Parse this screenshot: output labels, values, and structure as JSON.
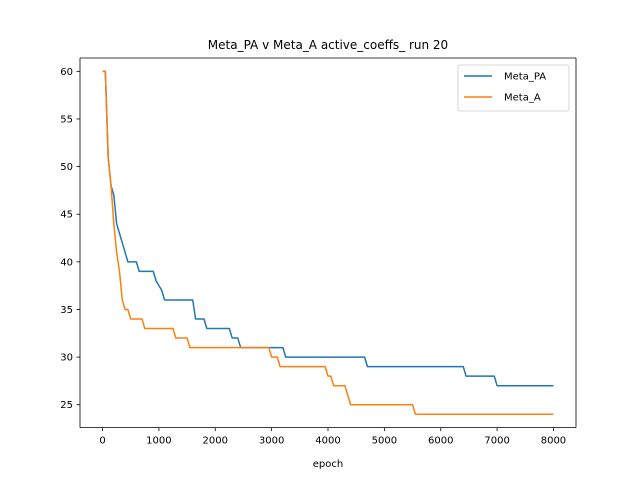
{
  "chart_data": {
    "type": "line",
    "title": "Meta_PA v Meta_A active_coeffs_ run 20",
    "xlabel": "epoch",
    "ylabel": "",
    "xlim": [
      -400,
      8400
    ],
    "ylim": [
      22.6,
      61.4
    ],
    "xticks": [
      0,
      1000,
      2000,
      3000,
      4000,
      5000,
      6000,
      7000,
      8000
    ],
    "yticks": [
      25,
      30,
      35,
      40,
      45,
      50,
      55,
      60
    ],
    "grid": false,
    "legend_position": "top-right",
    "series": [
      {
        "name": "Meta_PA",
        "color": "#1f77b4",
        "x": [
          0,
          50,
          100,
          150,
          200,
          250,
          300,
          350,
          400,
          450,
          600,
          650,
          900,
          950,
          1050,
          1100,
          1600,
          1650,
          1800,
          1850,
          2250,
          2300,
          2400,
          2450,
          3200,
          3250,
          4650,
          4700,
          6400,
          6450,
          6950,
          7000,
          8000
        ],
        "y": [
          60,
          60,
          51,
          48,
          47,
          44,
          43,
          42,
          41,
          40,
          40,
          39,
          39,
          38,
          37,
          36,
          36,
          34,
          34,
          33,
          33,
          32,
          32,
          31,
          31,
          30,
          30,
          29,
          29,
          28,
          28,
          27,
          27
        ]
      },
      {
        "name": "Meta_A",
        "color": "#ff7f0e",
        "x": [
          0,
          50,
          100,
          150,
          200,
          250,
          300,
          350,
          400,
          450,
          500,
          700,
          750,
          1250,
          1300,
          1500,
          1550,
          2950,
          3000,
          3100,
          3150,
          3950,
          4000,
          4050,
          4100,
          4300,
          4350,
          4400,
          5500,
          5550,
          8000
        ],
        "y": [
          60,
          60,
          51,
          48,
          44,
          41,
          39,
          36,
          35,
          35,
          34,
          34,
          33,
          33,
          32,
          32,
          31,
          31,
          30,
          30,
          29,
          29,
          28,
          28,
          27,
          27,
          26,
          25,
          25,
          24,
          24
        ]
      }
    ]
  }
}
